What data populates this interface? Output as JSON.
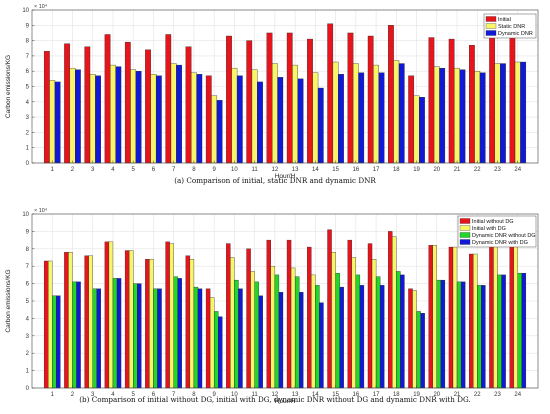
{
  "chart_data": [
    {
      "type": "bar",
      "caption": "(a)  Comparison of initial, static DNR and dynamic DNR",
      "xlabel": "Hour/H",
      "ylabel": "Carbon emissions/KG",
      "y_exponent_label": "× 10⁴",
      "ylim": [
        0,
        10
      ],
      "yticks": [
        "0",
        "1",
        "2",
        "3",
        "4",
        "5",
        "6",
        "7",
        "8",
        "9",
        "10"
      ],
      "categories": [
        "1",
        "2",
        "3",
        "4",
        "5",
        "6",
        "7",
        "8",
        "9",
        "10",
        "11",
        "12",
        "13",
        "14",
        "15",
        "16",
        "17",
        "18",
        "19",
        "20",
        "21",
        "22",
        "23",
        "24"
      ],
      "grid": true,
      "legend_position": "top-right",
      "series": [
        {
          "name": "Initial",
          "color": "#e8141c",
          "values": [
            7.3,
            7.8,
            7.6,
            8.4,
            7.9,
            7.4,
            8.4,
            7.6,
            5.7,
            8.3,
            8.0,
            8.5,
            8.5,
            8.1,
            9.1,
            8.5,
            8.3,
            9.0,
            5.7,
            8.2,
            8.1,
            7.7,
            8.5,
            8.6
          ]
        },
        {
          "name": "Static DNR",
          "color": "#f9f56a",
          "values": [
            5.4,
            6.2,
            5.8,
            6.4,
            6.1,
            5.8,
            6.5,
            5.9,
            4.4,
            6.2,
            6.1,
            6.5,
            6.4,
            5.9,
            6.6,
            6.5,
            6.4,
            6.7,
            4.4,
            6.3,
            6.2,
            6.0,
            6.5,
            6.6
          ]
        },
        {
          "name": "Dynamic DNR",
          "color": "#1019d8",
          "values": [
            5.3,
            6.1,
            5.7,
            6.3,
            6.0,
            5.7,
            6.4,
            5.8,
            4.1,
            5.7,
            5.3,
            5.6,
            5.5,
            4.9,
            5.8,
            5.9,
            5.9,
            6.5,
            4.3,
            6.2,
            6.1,
            5.9,
            6.5,
            6.6
          ]
        }
      ]
    },
    {
      "type": "bar",
      "caption": "(b)  Comparison of initial without DG, initial with DG, dynamic DNR without DG and dynamic DNR with DG.",
      "xlabel": "Hour/H",
      "ylabel": "Carbon emissions/KG",
      "y_exponent_label": "× 10⁴",
      "ylim": [
        0,
        10
      ],
      "yticks": [
        "0",
        "1",
        "2",
        "3",
        "4",
        "5",
        "6",
        "7",
        "8",
        "9",
        "10"
      ],
      "categories": [
        "1",
        "2",
        "3",
        "4",
        "5",
        "6",
        "7",
        "8",
        "9",
        "10",
        "11",
        "12",
        "13",
        "14",
        "15",
        "16",
        "17",
        "18",
        "19",
        "20",
        "21",
        "22",
        "23",
        "24"
      ],
      "grid": true,
      "legend_position": "top-right",
      "series": [
        {
          "name": "Initial without DG",
          "color": "#e8141c",
          "values": [
            7.3,
            7.8,
            7.6,
            8.4,
            7.9,
            7.4,
            8.4,
            7.6,
            5.7,
            8.3,
            8.0,
            8.5,
            8.5,
            8.1,
            9.1,
            8.5,
            8.3,
            9.0,
            5.7,
            8.2,
            8.1,
            7.7,
            8.5,
            8.6
          ]
        },
        {
          "name": "Initial with DG",
          "color": "#f9f56a",
          "values": [
            7.3,
            7.8,
            7.6,
            8.4,
            7.9,
            7.4,
            8.3,
            7.4,
            5.2,
            7.5,
            6.7,
            7.0,
            6.9,
            6.5,
            7.8,
            7.5,
            7.4,
            8.7,
            5.6,
            8.2,
            8.1,
            7.7,
            8.5,
            8.6
          ]
        },
        {
          "name": "Dynamic DNR without DG",
          "color": "#22d62a",
          "values": [
            5.3,
            6.1,
            5.7,
            6.3,
            6.0,
            5.7,
            6.4,
            5.8,
            4.4,
            6.2,
            6.1,
            6.5,
            6.4,
            5.9,
            6.6,
            6.5,
            6.4,
            6.7,
            4.4,
            6.2,
            6.1,
            5.9,
            6.5,
            6.6
          ]
        },
        {
          "name": "Dynamic DNR with DG",
          "color": "#1019d8",
          "values": [
            5.3,
            6.1,
            5.7,
            6.3,
            6.0,
            5.7,
            6.3,
            5.7,
            4.1,
            5.7,
            5.3,
            5.5,
            5.5,
            4.9,
            5.8,
            5.9,
            5.9,
            6.5,
            4.3,
            6.2,
            6.1,
            5.9,
            6.5,
            6.6
          ]
        }
      ]
    }
  ]
}
